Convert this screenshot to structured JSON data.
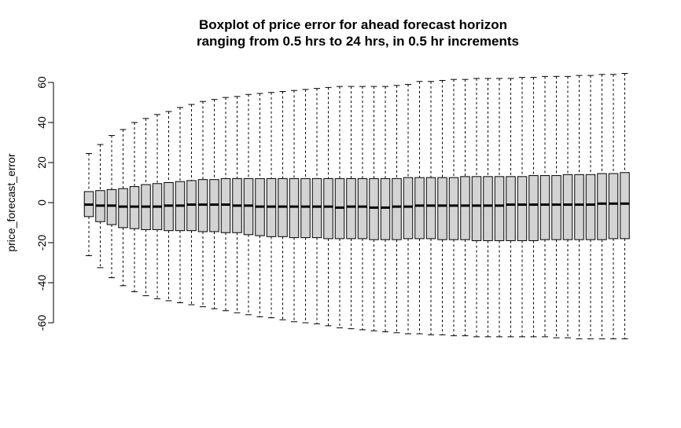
{
  "chart_data": {
    "type": "boxplot",
    "title": "Boxplot of price error for ahead forecast horizon",
    "subtitle": "ranging from 0.5 hrs to 24 hrs, in 0.5 hr increments",
    "xlabel": "",
    "ylabel": "price_forecast_error",
    "ylim": [
      -66,
      66
    ],
    "yticks": [
      -60,
      -40,
      -20,
      0,
      20,
      40,
      60
    ],
    "grid": false,
    "box_fill": "#d3d3d3",
    "series": [
      {
        "whisker_low": [
          -26.5,
          -32.5,
          -37.5,
          -41.5,
          -44.5,
          -46.5,
          -48,
          -49,
          -50,
          -51,
          -52,
          -53,
          -54,
          -55,
          -56,
          -57,
          -57.5,
          -58.5,
          -59.5,
          -60,
          -60.5,
          -61.5,
          -62.5,
          -63,
          -63.5,
          -64,
          -64.5,
          -65,
          -65.5,
          -65.5,
          -66,
          -66,
          -66.5,
          -66.5,
          -67,
          -67,
          -67,
          -67,
          -67,
          -67,
          -67,
          -67.5,
          -67.5,
          -68,
          -68,
          -68,
          -68,
          -68
        ],
        "q1": [
          -7,
          -9.5,
          -11,
          -12.5,
          -13,
          -13.5,
          -13.5,
          -14,
          -14,
          -14,
          -14.5,
          -14.5,
          -15,
          -15,
          -16,
          -16.5,
          -17,
          -17,
          -17.5,
          -17.5,
          -17.5,
          -18,
          -18,
          -18,
          -18,
          -18.5,
          -18.5,
          -18.5,
          -18,
          -18,
          -18,
          -18.5,
          -18.5,
          -18.5,
          -19,
          -19,
          -19,
          -19,
          -19,
          -19,
          -18.5,
          -18.5,
          -18.5,
          -18.5,
          -18.5,
          -18.5,
          -18,
          -18
        ],
        "median": [
          -1,
          -1.5,
          -1.5,
          -2,
          -2,
          -2,
          -2,
          -1.5,
          -1.5,
          -1,
          -1,
          -1,
          -1,
          -1.5,
          -1.5,
          -2,
          -2,
          -2,
          -2,
          -2,
          -2,
          -2,
          -2.5,
          -2,
          -2,
          -2.5,
          -2.5,
          -2,
          -2,
          -1.5,
          -1.5,
          -1.5,
          -1.5,
          -1.5,
          -1.5,
          -1.5,
          -1.5,
          -1,
          -1,
          -1,
          -1,
          -1,
          -1,
          -1,
          -1,
          -0.5,
          -0.5,
          -0.5
        ],
        "q3": [
          5.5,
          6,
          6.5,
          7,
          8,
          9,
          9.5,
          10,
          10.5,
          11,
          11.5,
          11.5,
          12,
          12,
          12,
          12,
          12,
          12,
          12,
          12,
          12,
          12,
          12,
          12,
          12,
          12,
          12,
          12,
          12.5,
          12.5,
          12.5,
          12.5,
          12.5,
          13,
          13,
          13,
          13,
          13,
          13,
          13.5,
          13.5,
          13.5,
          14,
          14,
          14,
          14.5,
          14.5,
          15
        ],
        "whisker_high": [
          24.5,
          29,
          33.5,
          36.5,
          40,
          42,
          44,
          45.5,
          47.5,
          49,
          50.5,
          51.5,
          52.5,
          53,
          54,
          54.5,
          55,
          55.5,
          56,
          56.5,
          57,
          57.5,
          58,
          58,
          58,
          58,
          58,
          58.5,
          59,
          60.5,
          60.5,
          61,
          61.5,
          61.5,
          62,
          62,
          62,
          62,
          62.5,
          62.5,
          63,
          63,
          63,
          63.5,
          63.5,
          64,
          64,
          64.5
        ]
      }
    ]
  }
}
